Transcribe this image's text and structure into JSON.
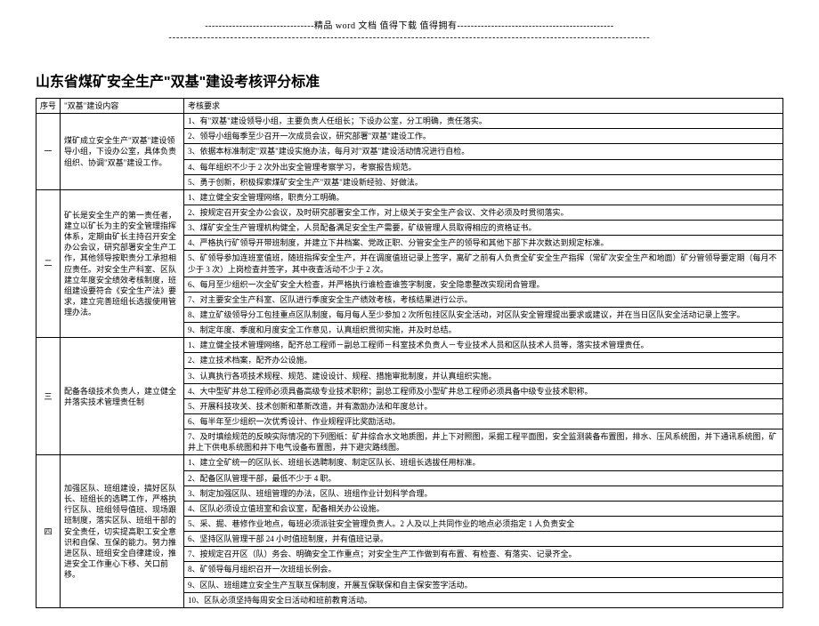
{
  "header": {
    "topline": "--------------------------------精品 word 文档  值得下载  值得拥有----------------------------------------------",
    "dashline": "-----------------------------------------------------------------------------------------------------------------------------"
  },
  "title": "山东省煤矿安全生产\"双基\"建设考核评分标准",
  "columns": {
    "seq": "序号",
    "content": "\"双基\"建设内容",
    "req": "考核要求"
  },
  "rows": [
    {
      "seq": "一",
      "content": "煤矿成立安全生产\"双基\"建设领导小组，下设办公室，具体负责组织、协调\"双基\"建设工作。",
      "reqs": [
        "1、有\"双基\"建设领导小组，主要负责人任组长；下设办公室，分工明确，责任落实。",
        "2、领导小组每季至少召开一次成员会议，研究部署\"双基\"建设工作。",
        "3、依据本标准制定\"双基\"建设实施办法，每月对\"双基\"建设活动情况进行自检。",
        "4、每年组织不少于 2 次外出安全管理考察学习，考察报告规范。",
        "5、勇于创新，积极探索煤矿安全生产\"双基\"建设新经验、好做法。"
      ]
    },
    {
      "seq": "二",
      "content": "矿长是安全生产的第一责任者，建立以矿长为主的安全管理指挥体系，定期由矿长主持召开安全办公会议，研究部署安全生产工作，其他领导按职责分工承担相应责任。对安全生产科室、区队建立年度安全绩效考核制度，班组建设要符合《安全生产法》要求，建立完善班组长选拔使用管理办法。",
      "reqs": [
        "1、建立健全安全管理网络，职责分工明确。",
        "2、按规定召开安全办公会议，及时研究部署安全工作，对上级关于安全生产会议、文件必须及时贯彻落实。",
        "3、煤矿安全生产管理机构健全，人员配备满足安全生产需要，矿级管理人员取得相应的资格证书。",
        "4、严格执行矿领导开带班制度，并建立下井档案、党政正职、分管安全生产的领导和其他下部下井次数达到规定标准。",
        "5、矿领导参加连班室值班，随班指挥安全生产，并在调度值班记录上签字，离矿之前有人负责全矿安全生产指挥（常矿次安全生产和地面）矿分管领导要定期（每月不少于 3 次）上岗检查并签字，其中夜查活动不少于 2 次。",
        "6、每月至少组织一次全矿安全大检查，并严格执行谁检查谁签字制度，安全隐患整改实现闭合管理。",
        "7、对主要安全生产科室、区队进行季度安全生产绩效考核，考核结果进行公示。",
        "8、建立矿级领导分工包挂重点区队制度，每月每人至少参加 2 次所包挂区队安全活动，对区队安全管理提出要求或建议，并在当日区队安全活动记录上签字。",
        "9、制定年度、季度和月度安全工作意见，认真组织贯彻实施，并及时总结。"
      ]
    },
    {
      "seq": "三",
      "content": "配备各级技术负责人，建立健全并落实技术管理责任制",
      "reqs": [
        "1、建立健全技术管理网络，配齐总工程师－副总工程师－科室技术负责人－专业技术人员和区队技术人员等，落实技术管理责任。",
        "2、建立技术档案，配齐办公设施。",
        "3、认真执行各项技术规程、规范、建设设计、规程、措施审批制度，并认真组织实施。",
        "4、大中型矿井总工程师必须具备高级专业技术职称；副总工程师及小型矿井总工程师必须具备中级专业技术职称。",
        "5、开展科技攻关、技术创新和革新改造，并有激励办法和年度总计。",
        "6、每半年至少组织一次优秀设计、作业规程评比奖励活动。",
        "7、及时填绘规范的反映实际情况的下列图纸：矿井综合水文地质图，井上下对照图，采掘工程平面图，安全监测装备布置图，排水、压风系统图，并下通讯系统图，矿井上下供电系统图和井下电气设备布置图，井下避灾路线图。"
      ]
    },
    {
      "seq": "四",
      "content": "加强区队、班组建设，搞好区队长、班组长的选聘工作，严格执行区队、班组领导值班、现场跟班制度，落实区队、班组干部的安全责任，切实提高职工安全意识和自保、互保的能力。努力推进区队、班组安全自律建设，推进安全工作重心下移、关口前移。",
      "reqs": [
        "1、建立全矿统一的区队长、班组长选聘制度、制定区队长、班组长选拔任用标准。",
        "2、配备区队管理干部，最低不少于 4 职。",
        "3、制定加强区队、班组管理的办法，区队、班组作业计划科学合理。",
        "4、区队必须设立值班室和会议室，配备相关办公设施。",
        "5、采、掘、巷修作业地点，每班必须派驻安全管理负责人。2 人及以上共同作业的地点必须指定 1 人负责安全",
        "6、坚持区队管理干部 24 小时值班制度，并有值班记录。",
        "7、按规定召开区（队）务会、明确安全工作重点；对安全生产工作做到有布置、有检查、有落实、记录齐全。",
        "8、矿领导每月组织召开一次班组长例会。",
        "9、区队、班组建立安全生产互联互保制度，开展互保联保和自主保安签字活动。",
        "10、区队必须坚持每周安全日活动和班前教育活动。"
      ]
    }
  ]
}
